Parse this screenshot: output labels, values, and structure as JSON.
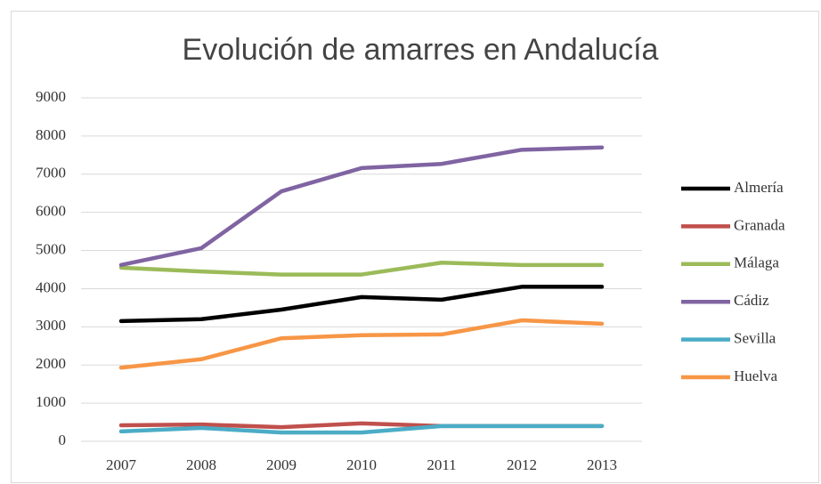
{
  "chart_data": {
    "type": "line",
    "title": "Evolución de amarres en Andalucía",
    "categories": [
      "2007",
      "2008",
      "2009",
      "2010",
      "2011",
      "2012",
      "2013"
    ],
    "series": [
      {
        "name": "Almería",
        "color": "#000000",
        "values": [
          3150,
          3200,
          3450,
          3780,
          3710,
          4050,
          4050
        ]
      },
      {
        "name": "Granada",
        "color": "#c0504d",
        "values": [
          420,
          440,
          370,
          470,
          400,
          400,
          400
        ]
      },
      {
        "name": "Málaga",
        "color": "#9bbb59",
        "values": [
          4550,
          4450,
          4370,
          4370,
          4680,
          4620,
          4620
        ]
      },
      {
        "name": "Cádiz",
        "color": "#8064a2",
        "values": [
          4620,
          5060,
          6550,
          7160,
          7270,
          7640,
          7700
        ]
      },
      {
        "name": "Sevilla",
        "color": "#4bacc6",
        "values": [
          260,
          350,
          230,
          230,
          400,
          400,
          400
        ]
      },
      {
        "name": "Huelva",
        "color": "#f79646",
        "values": [
          1930,
          2150,
          2700,
          2780,
          2800,
          3170,
          3080
        ]
      }
    ],
    "ylim": [
      0,
      9000
    ],
    "yticks": [
      0,
      1000,
      2000,
      3000,
      4000,
      5000,
      6000,
      7000,
      8000,
      9000
    ],
    "grid": true,
    "legend": "right"
  }
}
